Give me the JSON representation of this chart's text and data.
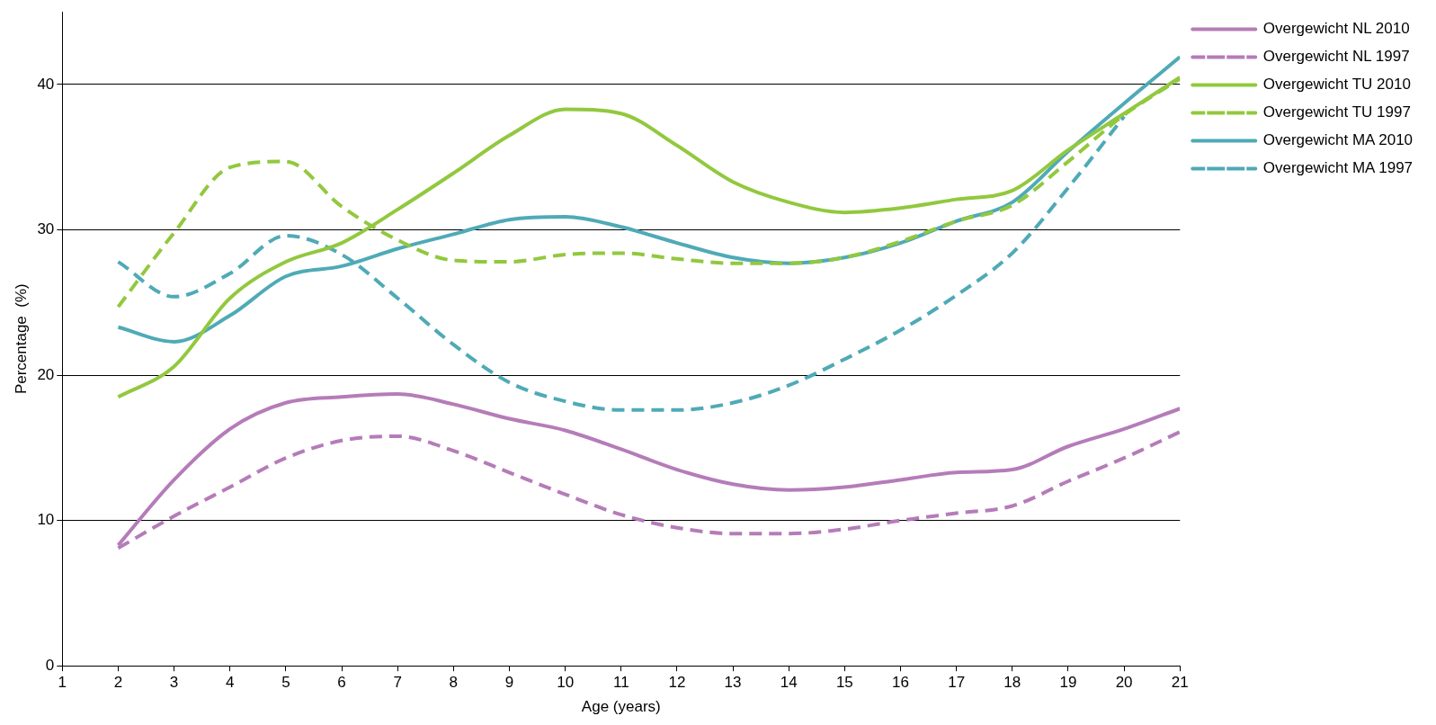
{
  "chart_data": {
    "type": "line",
    "xlabel": "Age (years)",
    "ylabel": "Percentage  (%)",
    "x": [
      2,
      3,
      4,
      5,
      6,
      7,
      8,
      9,
      10,
      11,
      12,
      13,
      14,
      15,
      16,
      17,
      18,
      19,
      20,
      21
    ],
    "xlim": [
      1,
      21
    ],
    "xticks": [
      1,
      2,
      3,
      4,
      5,
      6,
      7,
      8,
      9,
      10,
      11,
      12,
      13,
      14,
      15,
      16,
      17,
      18,
      19,
      20,
      21
    ],
    "ylim": [
      0,
      45
    ],
    "yticks": [
      0,
      10,
      20,
      30,
      40
    ],
    "grid": "y",
    "legend": "top right",
    "marker": "none",
    "series": [
      {
        "name": "Overgewicht NL 2010",
        "color": "#b57cb9",
        "line_style": "solid",
        "values": [
          8.3,
          12.8,
          16.3,
          18.1,
          18.5,
          18.7,
          18.0,
          17.0,
          16.2,
          14.9,
          13.5,
          12.5,
          12.1,
          12.3,
          12.8,
          13.3,
          13.5,
          15.1,
          16.3,
          17.7
        ]
      },
      {
        "name": "Overgewicht NL 1997",
        "color": "#b57cb9",
        "line_style": "dashed",
        "values": [
          8.1,
          10.3,
          12.3,
          14.3,
          15.5,
          15.8,
          14.8,
          13.3,
          11.8,
          10.4,
          9.5,
          9.1,
          9.1,
          9.4,
          10.0,
          10.5,
          11.0,
          12.7,
          14.3,
          16.1
        ]
      },
      {
        "name": "Overgewicht TU 2010",
        "color": "#92c83e",
        "line_style": "solid",
        "values": [
          18.5,
          20.6,
          25.3,
          27.8,
          29.1,
          31.4,
          33.9,
          36.5,
          38.3,
          38.0,
          35.8,
          33.3,
          31.9,
          31.2,
          31.5,
          32.1,
          32.7,
          35.5,
          38.0,
          40.5
        ]
      },
      {
        "name": "Overgewicht TU 1997",
        "color": "#92c83e",
        "line_style": "dashed",
        "values": [
          24.7,
          29.8,
          34.3,
          34.7,
          31.6,
          29.3,
          27.9,
          27.8,
          28.3,
          28.4,
          28.0,
          27.7,
          27.7,
          28.1,
          29.2,
          30.6,
          31.7,
          34.7,
          37.9,
          40.4
        ]
      },
      {
        "name": "Overgewicht MA 2010",
        "color": "#4faab6",
        "line_style": "solid",
        "values": [
          23.3,
          22.3,
          24.1,
          26.8,
          27.5,
          28.7,
          29.7,
          30.7,
          30.9,
          30.2,
          29.1,
          28.1,
          27.7,
          28.1,
          29.1,
          30.6,
          31.9,
          35.4,
          38.7,
          41.9
        ]
      },
      {
        "name": "Overgewicht MA 1997",
        "color": "#4faab6",
        "line_style": "dashed",
        "values": [
          27.8,
          25.4,
          27.0,
          29.6,
          28.3,
          25.3,
          22.1,
          19.5,
          18.2,
          17.6,
          17.6,
          18.1,
          19.3,
          21.1,
          23.1,
          25.5,
          28.4,
          32.9,
          37.8,
          null
        ]
      }
    ]
  }
}
